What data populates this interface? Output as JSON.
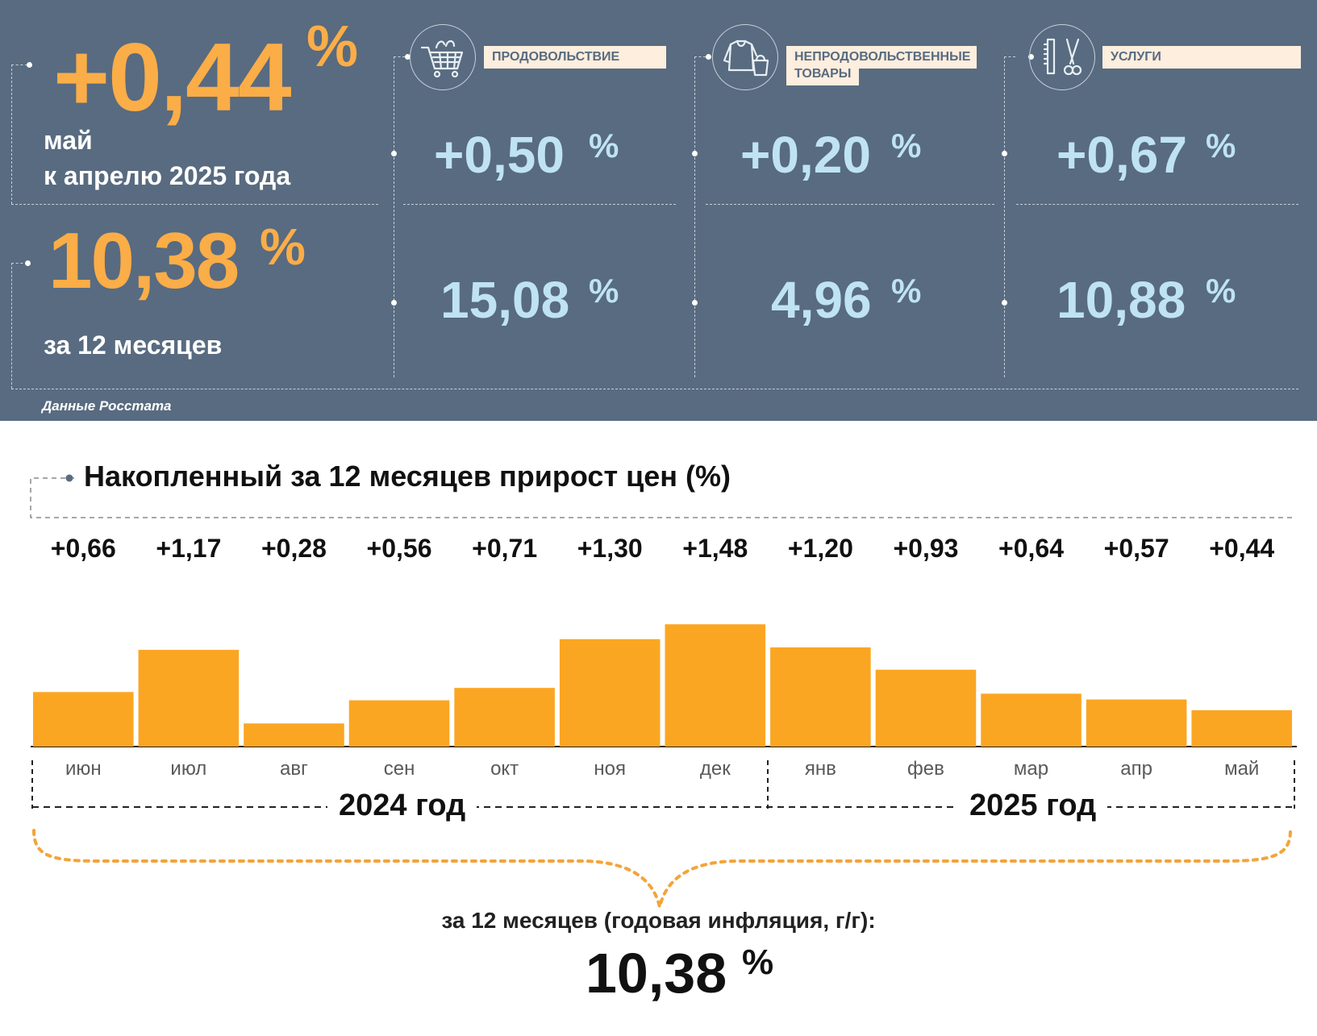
{
  "summary": {
    "monthly_value": "+0,44",
    "monthly_pct": "%",
    "monthly_caption_1": "май",
    "monthly_caption_2": "к апрелю 2025 года",
    "annual_value": "10,38",
    "annual_pct": "%",
    "annual_caption": "за 12 месяцев",
    "source": "Данные Росстата"
  },
  "categories": [
    {
      "label": "ПРОДОВОЛЬСТВИЕ",
      "icon": "shopping-cart-icon",
      "monthly": "+0,50",
      "annual": "15,08",
      "pct": "%"
    },
    {
      "label_1": "НЕПРОДОВОЛЬСТВЕННЫЕ",
      "label_2": "ТОВАРЫ",
      "icon": "clothing-bag-icon",
      "monthly": "+0,20",
      "annual": "4,96",
      "pct": "%"
    },
    {
      "label": "УСЛУГИ",
      "icon": "comb-scissors-icon",
      "monthly": "+0,67",
      "annual": "10,88",
      "pct": "%"
    }
  ],
  "chart_title": "Накопленный за 12 месяцев прирост цен (%)",
  "chart_data": {
    "type": "bar",
    "title": "Накопленный за 12 месяцев прирост цен (%)",
    "categories": [
      "июн",
      "июл",
      "авг",
      "сен",
      "окт",
      "ноя",
      "дек",
      "янв",
      "фев",
      "мар",
      "апр",
      "май"
    ],
    "values": [
      0.66,
      1.17,
      0.28,
      0.56,
      0.71,
      1.3,
      1.48,
      1.2,
      0.93,
      0.64,
      0.57,
      0.44
    ],
    "value_labels": [
      "+0,66",
      "+1,17",
      "+0,28",
      "+0,56",
      "+0,71",
      "+1,30",
      "+1,48",
      "+1,20",
      "+0,93",
      "+0,64",
      "+0,57",
      "+0,44"
    ],
    "groups": [
      {
        "label": "2024 год",
        "from": "июн",
        "to": "дек"
      },
      {
        "label": "2025 год",
        "from": "янв",
        "to": "май"
      }
    ],
    "bar_color": "#fba622",
    "ylim": [
      0,
      1.6
    ],
    "grid": false
  },
  "footer": {
    "caption": "за 12 месяцев (годовая инфляция, г/г):",
    "value": "10,38",
    "pct": "%"
  },
  "colors": {
    "panel": "#586b80",
    "accent_orange": "#fbad47",
    "value_blue": "#bfe3f3",
    "label_bg": "#fdeede"
  }
}
